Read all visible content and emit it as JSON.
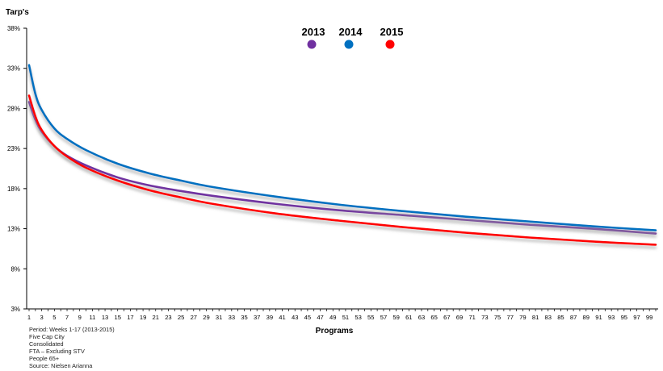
{
  "chart_data": {
    "type": "line",
    "ylabel": "Tarp's",
    "xlabel": "Programs",
    "ylim": [
      3,
      38
    ],
    "y_ticks": [
      3,
      8,
      13,
      18,
      23,
      28,
      33,
      38
    ],
    "y_tick_labels": [
      "3%",
      "8%",
      "13%",
      "18%",
      "23%",
      "28%",
      "33%",
      "38%"
    ],
    "x_range": [
      1,
      100
    ],
    "x_ticks": [
      1,
      3,
      5,
      7,
      9,
      11,
      13,
      15,
      17,
      19,
      21,
      23,
      25,
      27,
      29,
      31,
      33,
      35,
      37,
      39,
      41,
      43,
      45,
      47,
      49,
      51,
      53,
      55,
      57,
      59,
      61,
      63,
      65,
      67,
      69,
      71,
      73,
      75,
      77,
      79,
      81,
      83,
      85,
      87,
      89,
      91,
      93,
      95,
      97,
      99
    ],
    "grid": false,
    "legend_placement": "top-center",
    "series": [
      {
        "name": "2013",
        "color": "#7030a0",
        "x": [
          1,
          2,
          3,
          5,
          7,
          10,
          15,
          20,
          25,
          30,
          40,
          50,
          60,
          70,
          80,
          90,
          100
        ],
        "y": [
          28.8,
          26.6,
          25.1,
          23.3,
          22.1,
          20.9,
          19.4,
          18.4,
          17.7,
          17.1,
          16.1,
          15.3,
          14.7,
          14.1,
          13.5,
          13.0,
          12.4
        ]
      },
      {
        "name": "2014",
        "color": "#0070c0",
        "x": [
          1,
          2,
          3,
          5,
          7,
          10,
          15,
          20,
          25,
          30,
          40,
          50,
          60,
          70,
          80,
          90,
          100
        ],
        "y": [
          33.4,
          29.8,
          27.8,
          25.5,
          24.2,
          22.8,
          21.1,
          19.9,
          19.0,
          18.2,
          17.0,
          16.0,
          15.2,
          14.5,
          13.9,
          13.3,
          12.8
        ]
      },
      {
        "name": "2015",
        "color": "#ff0000",
        "x": [
          1,
          2,
          3,
          5,
          7,
          10,
          15,
          20,
          25,
          30,
          40,
          50,
          60,
          70,
          80,
          90,
          100
        ],
        "y": [
          29.6,
          27.0,
          25.3,
          23.3,
          22.0,
          20.6,
          19.0,
          17.8,
          16.9,
          16.1,
          14.9,
          14.0,
          13.2,
          12.5,
          11.9,
          11.4,
          11.0
        ]
      }
    ],
    "footnotes": [
      "Period: Weeks 1-17 (2013-2015)",
      "Five Cap City",
      "Consolidated",
      "FTA – Excluding STV",
      "People 65+",
      "Source: Nielsen Arianna"
    ]
  }
}
